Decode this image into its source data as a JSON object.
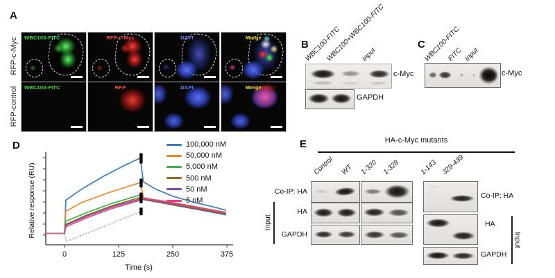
{
  "panels": {
    "A": {
      "label": "A",
      "rows": [
        {
          "row_label": "RFP-c-Myc",
          "tiles": [
            {
              "label": "WBC100-FITC"
            },
            {
              "label": "RFP-c-Myc"
            },
            {
              "label": "DAPI"
            },
            {
              "label": "Merge"
            }
          ]
        },
        {
          "row_label": "RFP-control",
          "tiles": [
            {
              "label": "WBC100-FITC"
            },
            {
              "label": "RFP"
            },
            {
              "label": "DAPI"
            },
            {
              "label": "Merge"
            }
          ]
        }
      ]
    },
    "B": {
      "label": "B",
      "lane_labels": [
        "WBC100-FITC",
        "WBC100+WBC100-FITC",
        "Input"
      ],
      "blot_labels": [
        "c-Myc",
        "GAPDH"
      ]
    },
    "C": {
      "label": "C",
      "lane_labels": [
        "WBC100-FITC",
        "FITC",
        "Input"
      ],
      "blot_labels": [
        "c-Myc"
      ]
    },
    "D": {
      "label": "D"
    },
    "E": {
      "label": "E",
      "title": "HA-c-Myc mutants",
      "lane_labels": [
        "Control",
        "WT",
        "1-320",
        "1-328",
        "1-143",
        "329-439"
      ],
      "left_row_labels": [
        "Co-IP: HA",
        "HA",
        "GAPDH"
      ],
      "right_row_labels": [
        "Co-IP: HA",
        "HA",
        "GAPDH"
      ],
      "input_label_left": "Input",
      "input_label_right": "Input"
    }
  },
  "colors": {
    "fitc_green": "#3ce43c",
    "rfp_red": "#ff4747",
    "dapi_blue": "#7282ff",
    "merge_yellow": "#f3e619",
    "series_blue": "#3a7cc4",
    "series_orange": "#f58426",
    "series_green": "#38b24a",
    "series_brown": "#9a6a1e",
    "series_purple": "#7a4fa3",
    "series_pink": "#ee3d80"
  },
  "chart_data": {
    "type": "line",
    "title": "",
    "xlabel": "Time (s)",
    "ylabel": "Relative response (RU)",
    "xticks": [
      0,
      125,
      250,
      375
    ],
    "xlim": [
      -45,
      390
    ],
    "ylim": [
      -0.15,
      1.05
    ],
    "y_axis_tick_count": 8,
    "y_axis_numeric_labels": false,
    "grid": false,
    "legend_position": "upper right",
    "series": [
      {
        "name": "100,000 nM",
        "color": "#3a7cc4",
        "points": [
          [
            -45,
            0.02
          ],
          [
            0,
            0.02
          ],
          [
            3,
            0.44
          ],
          [
            40,
            0.58
          ],
          [
            90,
            0.74
          ],
          [
            140,
            0.88
          ],
          [
            175,
            0.97
          ],
          [
            182,
            0.67
          ],
          [
            210,
            0.58
          ],
          [
            250,
            0.49
          ],
          [
            300,
            0.41
          ],
          [
            340,
            0.36
          ],
          [
            372,
            0.315
          ]
        ]
      },
      {
        "name": "50,000 nM",
        "color": "#f58426",
        "points": [
          [
            -45,
            0.02
          ],
          [
            0,
            0.02
          ],
          [
            3,
            0.3
          ],
          [
            40,
            0.41
          ],
          [
            100,
            0.53
          ],
          [
            175,
            0.66
          ],
          [
            183,
            0.47
          ],
          [
            220,
            0.43
          ],
          [
            260,
            0.395
          ],
          [
            310,
            0.345
          ],
          [
            372,
            0.29
          ]
        ]
      },
      {
        "name": "5,000 nM",
        "color": "#38b24a",
        "points": [
          [
            -45,
            0.02
          ],
          [
            0,
            0.02
          ],
          [
            3,
            0.175
          ],
          [
            50,
            0.28
          ],
          [
            110,
            0.4
          ],
          [
            175,
            0.505
          ],
          [
            183,
            0.455
          ],
          [
            220,
            0.415
          ],
          [
            260,
            0.375
          ],
          [
            310,
            0.32
          ],
          [
            372,
            0.255
          ]
        ]
      },
      {
        "name": "500 nM",
        "color": "#9a6a1e",
        "points": [
          [
            -45,
            0.02
          ],
          [
            0,
            0.02
          ],
          [
            3,
            0.135
          ],
          [
            50,
            0.25
          ],
          [
            110,
            0.37
          ],
          [
            175,
            0.475
          ],
          [
            183,
            0.46
          ],
          [
            220,
            0.425
          ],
          [
            260,
            0.385
          ],
          [
            310,
            0.335
          ],
          [
            372,
            0.27
          ]
        ]
      },
      {
        "name": "50 nM",
        "color": "#7a4fa3",
        "points": [
          [
            -45,
            0.02
          ],
          [
            0,
            0.02
          ],
          [
            3,
            0.125
          ],
          [
            50,
            0.235
          ],
          [
            110,
            0.355
          ],
          [
            175,
            0.455
          ],
          [
            183,
            0.445
          ],
          [
            220,
            0.41
          ],
          [
            260,
            0.37
          ],
          [
            310,
            0.32
          ],
          [
            372,
            0.262
          ]
        ]
      },
      {
        "name": "5 nM",
        "color": "#ee3d80",
        "points": [
          [
            -45,
            0.02
          ],
          [
            0,
            0.02
          ],
          [
            3,
            0.105
          ],
          [
            50,
            0.215
          ],
          [
            110,
            0.335
          ],
          [
            175,
            0.44
          ],
          [
            183,
            0.465
          ],
          [
            220,
            0.435
          ],
          [
            260,
            0.4
          ],
          [
            310,
            0.35
          ],
          [
            372,
            0.285
          ]
        ]
      },
      {
        "name": "buffer drift",
        "color": "#9a9a9a",
        "style": "dotted",
        "legend": false,
        "points": [
          [
            -45,
            0.02
          ],
          [
            0,
            0.02
          ],
          [
            4,
            -0.08
          ],
          [
            176,
            0.295
          ]
        ]
      }
    ],
    "injection_stop_markers": {
      "x": 177,
      "color": "#000000",
      "segments": [
        [
          0.9,
          1.03
        ],
        [
          0.6,
          0.71
        ],
        [
          0.4,
          0.535
        ],
        [
          0.25,
          0.345
        ]
      ]
    }
  }
}
